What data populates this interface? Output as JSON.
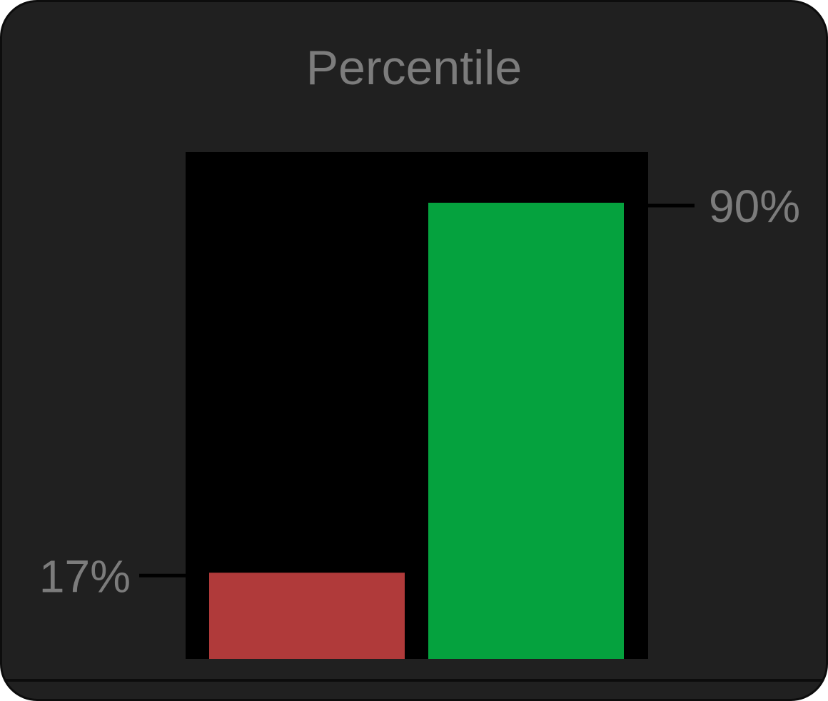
{
  "chart_data": {
    "type": "bar",
    "title": "Percentile",
    "categories": [
      "",
      ""
    ],
    "values": [
      17,
      90
    ],
    "value_labels": [
      "17%",
      "90%"
    ],
    "colors": [
      "#b03a3a",
      "#05a23e"
    ],
    "ylim": [
      0,
      100
    ],
    "background": "#000000",
    "card_color": "#202020",
    "label_color": "#7c7c7c"
  }
}
